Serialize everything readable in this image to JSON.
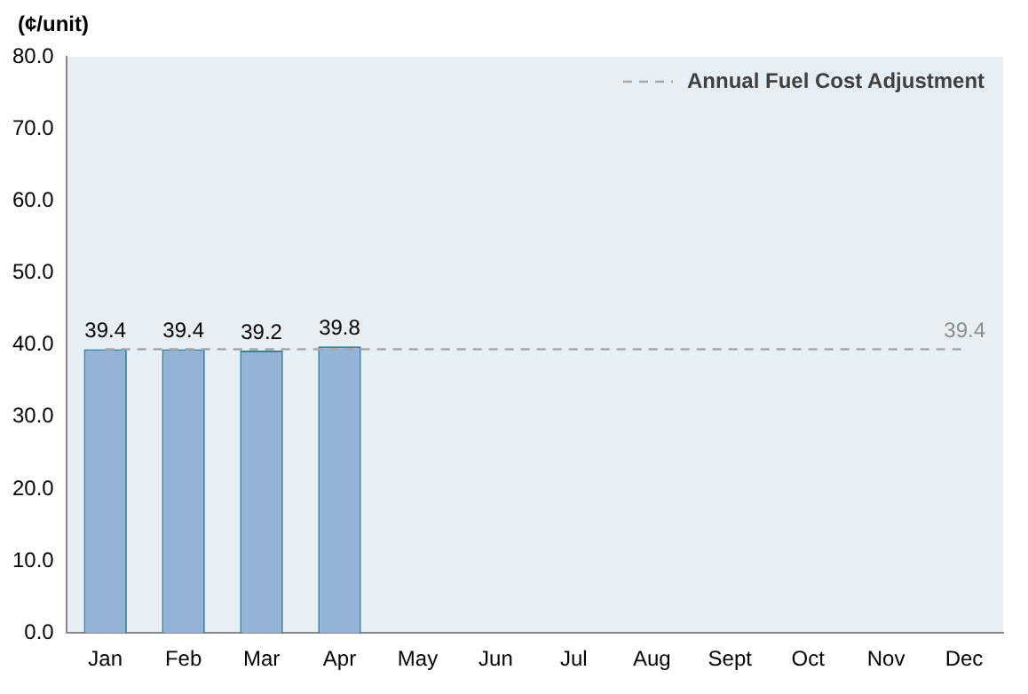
{
  "chart_data": {
    "type": "bar",
    "ylabel": "(¢/unit)",
    "categories": [
      "Jan",
      "Feb",
      "Mar",
      "Apr",
      "May",
      "Jun",
      "Jul",
      "Aug",
      "Sept",
      "Oct",
      "Nov",
      "Dec"
    ],
    "series": [
      {
        "color": "#95b3d7",
        "values": [
          39.4,
          39.4,
          39.2,
          39.8,
          null,
          null,
          null,
          null,
          null,
          null,
          null,
          null
        ],
        "value_labels": [
          "39.4",
          "39.4",
          "39.2",
          "39.8",
          null,
          null,
          null,
          null,
          null,
          null,
          null,
          null
        ]
      },
      {
        "name": "Annual Fuel Cost Adjustment",
        "type": "line",
        "color": "#a6a6a6",
        "line_style": "dashed",
        "values": [
          39.4,
          39.4,
          39.4,
          39.4,
          39.4,
          39.4,
          39.4,
          39.4,
          39.4,
          39.4,
          39.4,
          39.4
        ],
        "value_labels": [
          null,
          null,
          null,
          null,
          null,
          null,
          null,
          null,
          null,
          null,
          null,
          "39.4"
        ]
      }
    ],
    "ylim": [
      0,
      80
    ],
    "yticks": [
      {
        "value": 0,
        "label": "0.0"
      },
      {
        "value": 10,
        "label": "10.0"
      },
      {
        "value": 20,
        "label": "20.0"
      },
      {
        "value": 30,
        "label": "30.0"
      },
      {
        "value": 40,
        "label": "40.0"
      },
      {
        "value": 50,
        "label": "50.0"
      },
      {
        "value": 60,
        "label": "60.0"
      },
      {
        "value": 70,
        "label": "70.0"
      },
      {
        "value": 80,
        "label": "80.0"
      }
    ],
    "grid": false,
    "legend": "top right",
    "marker": "none"
  }
}
